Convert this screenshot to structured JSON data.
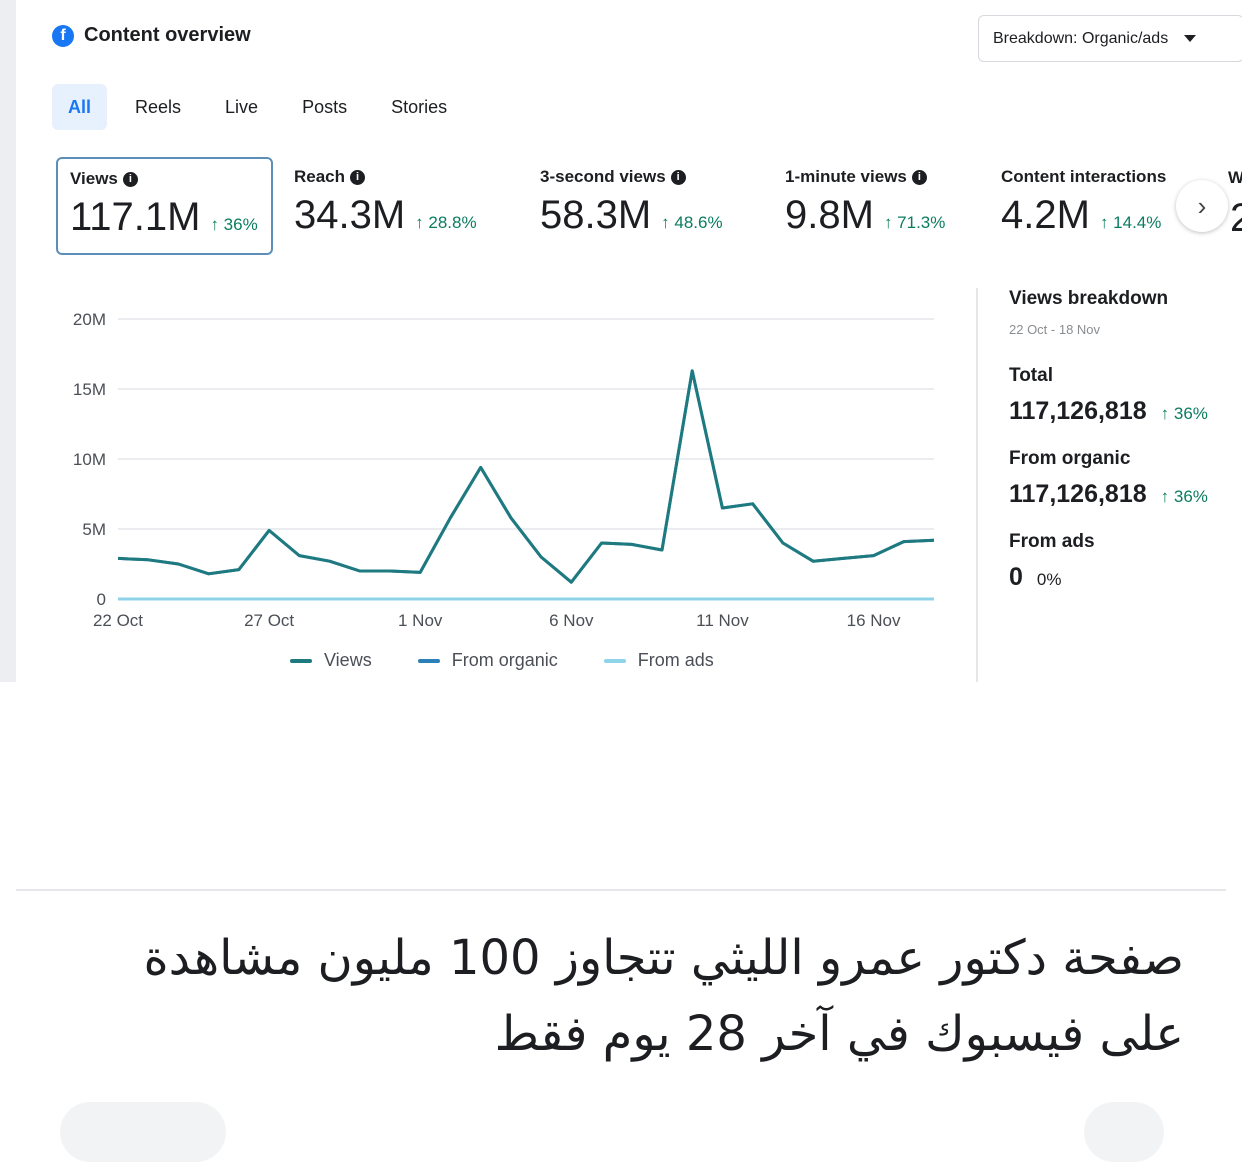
{
  "header": {
    "title": "Content overview",
    "icon": "facebook-icon"
  },
  "breakdown": {
    "label": "Breakdown: Organic/ads"
  },
  "tabs": [
    {
      "label": "All",
      "active": true
    },
    {
      "label": "Reels"
    },
    {
      "label": "Live"
    },
    {
      "label": "Posts"
    },
    {
      "label": "Stories"
    }
  ],
  "metrics": [
    {
      "label": "Views",
      "value": "117.1M",
      "change": "↑ 36%"
    },
    {
      "label": "Reach",
      "value": "34.3M",
      "change": "↑ 28.8%"
    },
    {
      "label": "3-second views",
      "value": "58.3M",
      "change": "↑ 48.6%"
    },
    {
      "label": "1-minute views",
      "value": "9.8M",
      "change": "↑ 71.3%"
    },
    {
      "label": "Content interactions",
      "value": "4.2M",
      "change": "↑ 14.4%"
    }
  ],
  "clipped": {
    "label": "W",
    "value": "2"
  },
  "side": {
    "heading": "Views breakdown",
    "date_range": "22 Oct - 18 Nov",
    "total_label": "Total",
    "total_value": "117,126,818",
    "total_change": "↑ 36%",
    "organic_label": "From organic",
    "organic_value": "117,126,818",
    "organic_change": "↑ 36%",
    "ads_label": "From ads",
    "ads_value": "0",
    "ads_change": "0%"
  },
  "chart_data": {
    "type": "line",
    "x": [
      "22 Oct",
      "23 Oct",
      "24 Oct",
      "25 Oct",
      "26 Oct",
      "27 Oct",
      "28 Oct",
      "29 Oct",
      "30 Oct",
      "31 Oct",
      "1 Nov",
      "2 Nov",
      "3 Nov",
      "4 Nov",
      "5 Nov",
      "6 Nov",
      "7 Nov",
      "8 Nov",
      "9 Nov",
      "10 Nov",
      "11 Nov",
      "12 Nov",
      "13 Nov",
      "14 Nov",
      "15 Nov",
      "16 Nov",
      "17 Nov",
      "18 Nov"
    ],
    "xticks": [
      "22 Oct",
      "27 Oct",
      "1 Nov",
      "6 Nov",
      "11 Nov",
      "16 Nov"
    ],
    "yticks": [
      "0",
      "5M",
      "10M",
      "15M",
      "20M"
    ],
    "ylim": [
      0,
      20000000
    ],
    "grid": true,
    "series": [
      {
        "name": "Views",
        "color": "#1f7a80",
        "values": [
          2900000,
          2800000,
          2500000,
          1800000,
          2100000,
          4900000,
          3100000,
          2700000,
          2000000,
          2000000,
          1900000,
          5800000,
          9400000,
          5800000,
          3000000,
          1200000,
          4000000,
          3900000,
          3500000,
          16300000,
          6500000,
          6800000,
          4000000,
          2700000,
          2900000,
          3100000,
          4100000,
          4200000
        ]
      },
      {
        "name": "From organic",
        "color": "#2d7fb8",
        "values": [
          2900000,
          2800000,
          2500000,
          1800000,
          2100000,
          4900000,
          3100000,
          2700000,
          2000000,
          2000000,
          1900000,
          5800000,
          9400000,
          5800000,
          3000000,
          1200000,
          4000000,
          3900000,
          3500000,
          16300000,
          6500000,
          6800000,
          4000000,
          2700000,
          2900000,
          3100000,
          4100000,
          4200000
        ]
      },
      {
        "name": "From ads",
        "color": "#8fd3e8",
        "values": [
          0,
          0,
          0,
          0,
          0,
          0,
          0,
          0,
          0,
          0,
          0,
          0,
          0,
          0,
          0,
          0,
          0,
          0,
          0,
          0,
          0,
          0,
          0,
          0,
          0,
          0,
          0,
          0
        ]
      }
    ]
  },
  "headline": "صفحة دكتور عمرو الليثي تتجاوز 100 مليون مشاهدة على فيسبوك في آخر 28 يوم فقط"
}
